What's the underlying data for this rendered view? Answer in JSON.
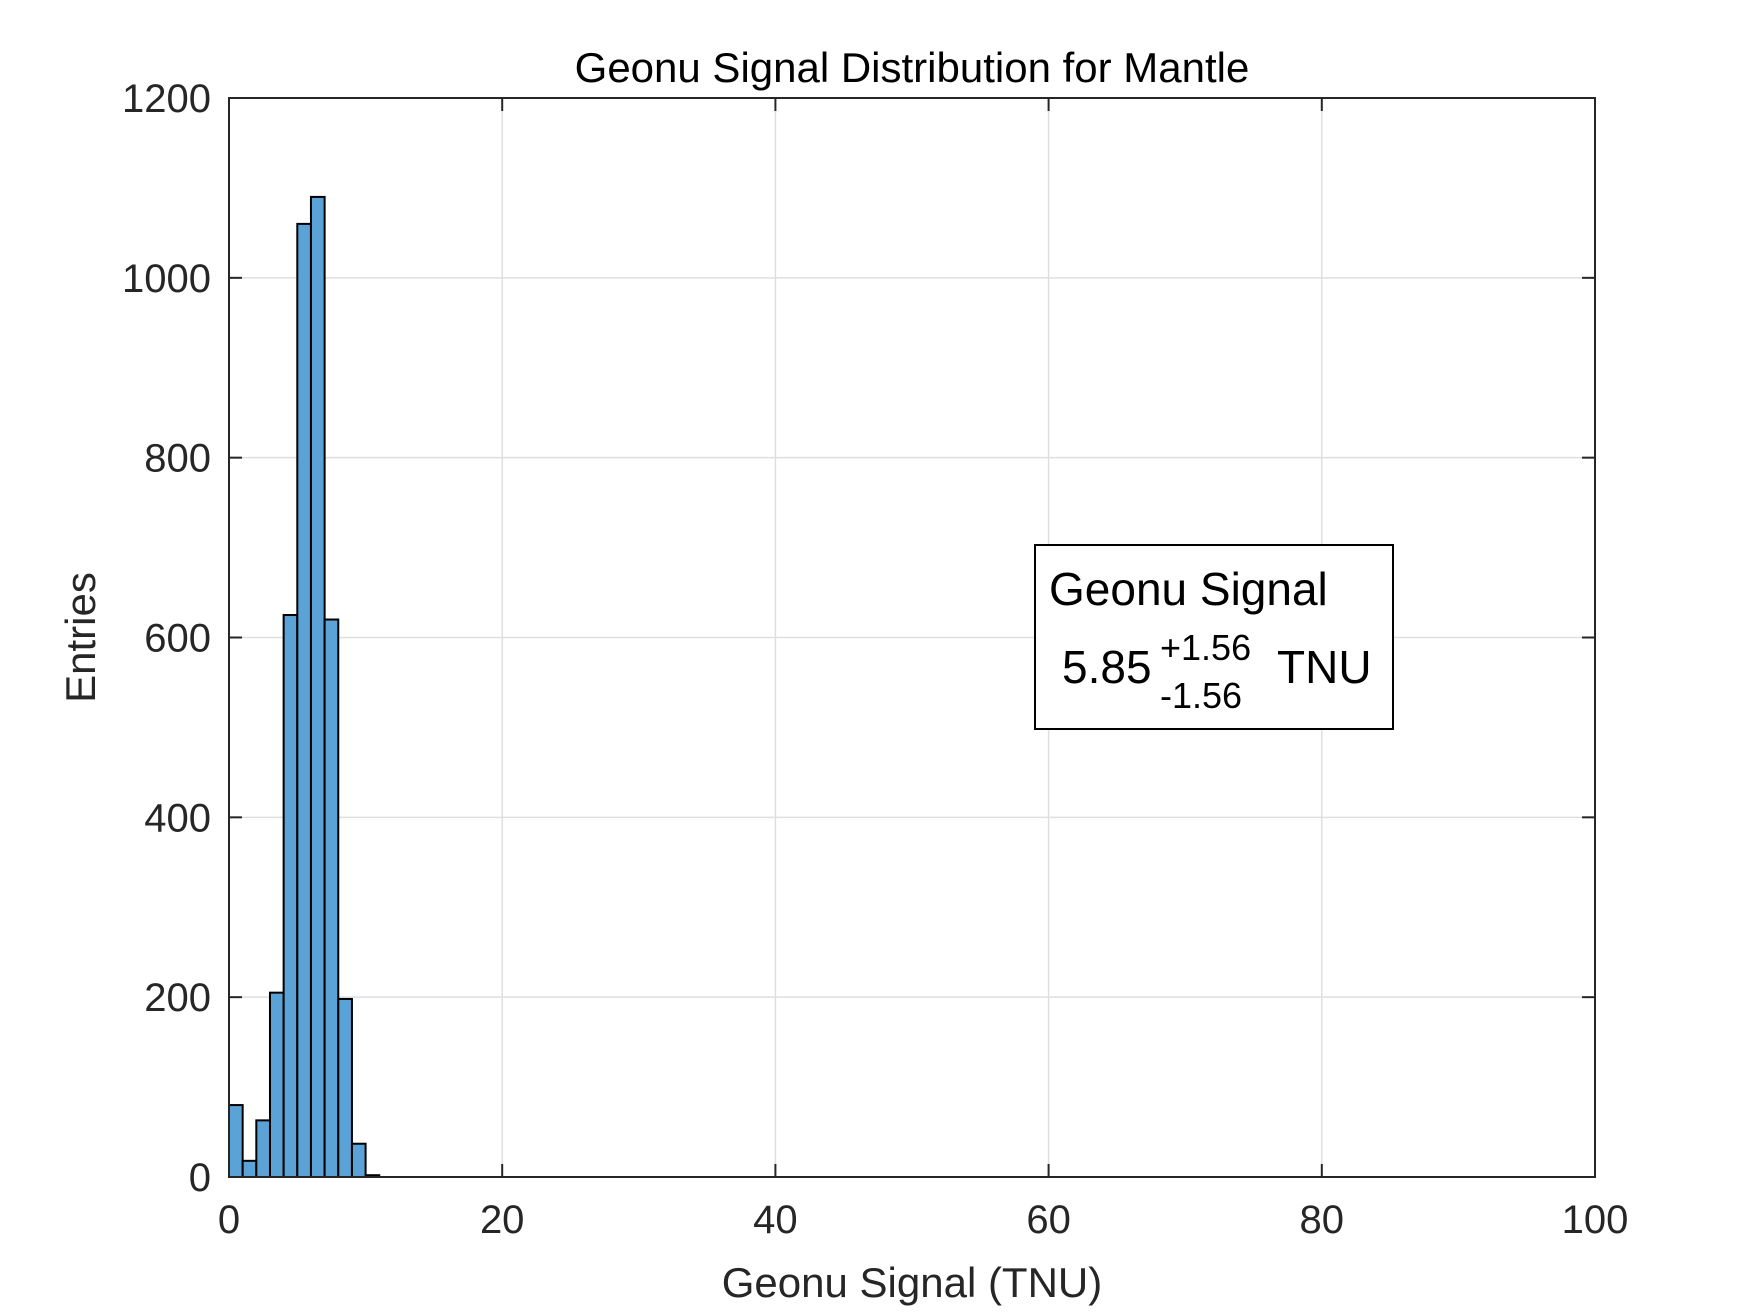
{
  "chart_data": {
    "type": "bar",
    "title": "Geonu Signal Distribution for Mantle",
    "xlabel": "Geonu Signal (TNU)",
    "ylabel": "Entries",
    "xlim": [
      0,
      100
    ],
    "ylim": [
      0,
      1200
    ],
    "xticks": [
      0,
      20,
      40,
      60,
      80,
      100
    ],
    "yticks": [
      0,
      200,
      400,
      600,
      800,
      1000,
      1200
    ],
    "grid": true,
    "bar_color": "#5ba3d6",
    "bar_edge_color": "#000000",
    "bin_width": 1,
    "bins": [
      {
        "x0": 0,
        "x1": 1,
        "count": 80
      },
      {
        "x0": 1,
        "x1": 2,
        "count": 18
      },
      {
        "x0": 2,
        "x1": 3,
        "count": 63
      },
      {
        "x0": 3,
        "x1": 4,
        "count": 205
      },
      {
        "x0": 4,
        "x1": 5,
        "count": 625
      },
      {
        "x0": 5,
        "x1": 6,
        "count": 1060
      },
      {
        "x0": 6,
        "x1": 7,
        "count": 1090
      },
      {
        "x0": 7,
        "x1": 8,
        "count": 620
      },
      {
        "x0": 8,
        "x1": 9,
        "count": 198
      },
      {
        "x0": 9,
        "x1": 10,
        "count": 37
      },
      {
        "x0": 10,
        "x1": 11,
        "count": 2
      }
    ],
    "annotation": {
      "line1": "Geonu Signal",
      "value": "5.85",
      "plus": "+1.56",
      "minus": "-1.56",
      "unit": "TNU"
    }
  }
}
